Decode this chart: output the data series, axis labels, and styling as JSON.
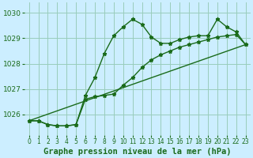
{
  "xlabel": "Graphe pression niveau de la mer (hPa)",
  "bg_color": "#cceeff",
  "grid_color": "#99ccbb",
  "line_color": "#1a6b1a",
  "xlim": [
    -0.5,
    23.5
  ],
  "ylim": [
    1025.2,
    1030.4
  ],
  "yticks": [
    1026,
    1027,
    1028,
    1029,
    1030
  ],
  "xticks": [
    0,
    1,
    2,
    3,
    4,
    5,
    6,
    7,
    8,
    9,
    10,
    11,
    12,
    13,
    14,
    15,
    16,
    17,
    18,
    19,
    20,
    21,
    22,
    23
  ],
  "line1_x": [
    0,
    1,
    2,
    3,
    4,
    5,
    6,
    7,
    8,
    9,
    10,
    11,
    12,
    13,
    14,
    15,
    16,
    17,
    18,
    19,
    20,
    21,
    22,
    23
  ],
  "line1_y": [
    1025.75,
    1025.75,
    1025.6,
    1025.55,
    1025.55,
    1025.6,
    1026.75,
    1027.45,
    1028.4,
    1029.1,
    1029.45,
    1029.75,
    1029.55,
    1029.05,
    1028.8,
    1028.8,
    1028.95,
    1029.05,
    1029.1,
    1029.1,
    1029.75,
    1029.45,
    1029.25,
    1028.75
  ],
  "line2_x": [
    0,
    1,
    2,
    3,
    4,
    5,
    6,
    7,
    8,
    9,
    10,
    11,
    12,
    13,
    14,
    15,
    16,
    17,
    18,
    19,
    20,
    21,
    22,
    23
  ],
  "line2_y": [
    1025.75,
    1025.75,
    1025.6,
    1025.55,
    1025.55,
    1025.6,
    1026.6,
    1026.7,
    1026.75,
    1026.8,
    1027.15,
    1027.45,
    1027.85,
    1028.15,
    1028.35,
    1028.5,
    1028.65,
    1028.75,
    1028.85,
    1028.95,
    1029.05,
    1029.1,
    1029.15,
    1028.75
  ],
  "line3_x": [
    0,
    23
  ],
  "line3_y": [
    1025.75,
    1028.75
  ],
  "markersize": 3.5,
  "linewidth": 1.0,
  "xlabel_fontsize": 7.5,
  "xlabel_color": "#1a6b1a",
  "xlabel_fontweight": "bold",
  "ytick_fontsize": 6.5,
  "xtick_fontsize": 5.5
}
